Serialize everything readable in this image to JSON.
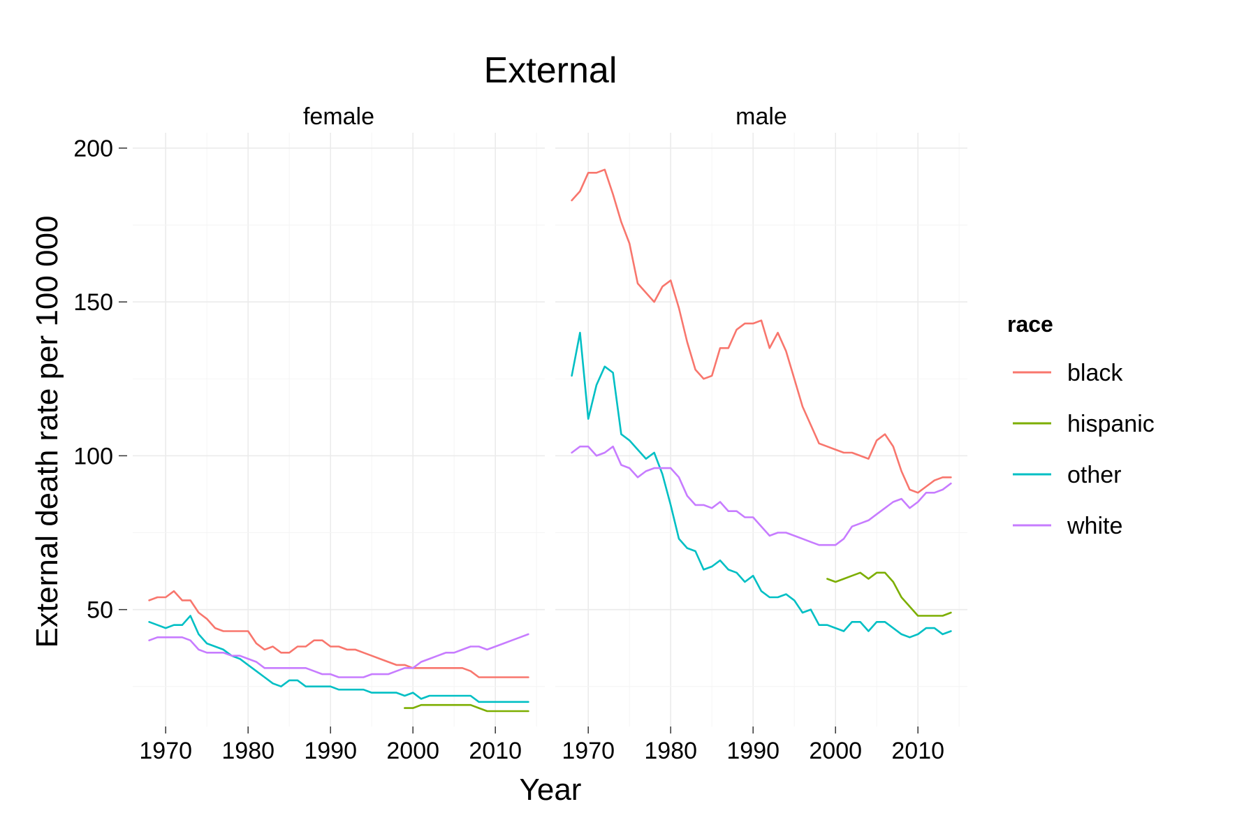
{
  "chart_data": {
    "type": "line",
    "title": "External",
    "xlabel": "Year",
    "ylabel": "External death rate per 100 000",
    "legend": {
      "title": "race",
      "placement": "right",
      "items": [
        {
          "label": "black",
          "color": "#F8766D"
        },
        {
          "label": "hispanic",
          "color": "#7CAE00"
        },
        {
          "label": "other",
          "color": "#00BFC4"
        },
        {
          "label": "white",
          "color": "#C77CFF"
        }
      ]
    },
    "xlim": [
      1966,
      2016
    ],
    "ylim": [
      12,
      205
    ],
    "x_ticks": [
      1970,
      1980,
      1990,
      2000,
      2010
    ],
    "x_tick_labels": [
      "1970",
      "1980",
      "1990",
      "2000",
      "2010"
    ],
    "y_ticks": [
      50,
      100,
      150,
      200
    ],
    "y_tick_labels": [
      "50",
      "100",
      "150",
      "200"
    ],
    "grid": true,
    "panels": [
      {
        "label": "female",
        "series": [
          {
            "name": "black",
            "x": [
              1968,
              1969,
              1970,
              1971,
              1972,
              1973,
              1974,
              1975,
              1976,
              1977,
              1978,
              1979,
              1980,
              1981,
              1982,
              1983,
              1984,
              1985,
              1986,
              1987,
              1988,
              1989,
              1990,
              1991,
              1992,
              1993,
              1994,
              1995,
              1996,
              1997,
              1998,
              1999,
              2000,
              2001,
              2002,
              2003,
              2004,
              2005,
              2006,
              2007,
              2008,
              2009,
              2010,
              2011,
              2012,
              2013,
              2014
            ],
            "y": [
              53,
              54,
              54,
              56,
              53,
              53,
              49,
              47,
              44,
              43,
              43,
              43,
              43,
              39,
              37,
              38,
              36,
              36,
              38,
              38,
              40,
              40,
              38,
              38,
              37,
              37,
              36,
              35,
              34,
              33,
              32,
              32,
              31,
              31,
              31,
              31,
              31,
              31,
              31,
              30,
              28,
              28,
              28,
              28,
              28,
              28,
              28
            ]
          },
          {
            "name": "hispanic",
            "x": [
              1999,
              2000,
              2001,
              2002,
              2003,
              2004,
              2005,
              2006,
              2007,
              2008,
              2009,
              2010,
              2011,
              2012,
              2013,
              2014
            ],
            "y": [
              18,
              18,
              19,
              19,
              19,
              19,
              19,
              19,
              19,
              18,
              17,
              17,
              17,
              17,
              17,
              17
            ]
          },
          {
            "name": "other",
            "x": [
              1968,
              1969,
              1970,
              1971,
              1972,
              1973,
              1974,
              1975,
              1976,
              1977,
              1978,
              1979,
              1980,
              1981,
              1982,
              1983,
              1984,
              1985,
              1986,
              1987,
              1988,
              1989,
              1990,
              1991,
              1992,
              1993,
              1994,
              1995,
              1996,
              1997,
              1998,
              1999,
              2000,
              2001,
              2002,
              2003,
              2004,
              2005,
              2006,
              2007,
              2008,
              2009,
              2010,
              2011,
              2012,
              2013,
              2014
            ],
            "y": [
              46,
              45,
              44,
              45,
              45,
              48,
              42,
              39,
              38,
              37,
              35,
              34,
              32,
              30,
              28,
              26,
              25,
              27,
              27,
              25,
              25,
              25,
              25,
              24,
              24,
              24,
              24,
              23,
              23,
              23,
              23,
              22,
              23,
              21,
              22,
              22,
              22,
              22,
              22,
              22,
              20,
              20,
              20,
              20,
              20,
              20,
              20
            ]
          },
          {
            "name": "white",
            "x": [
              1968,
              1969,
              1970,
              1971,
              1972,
              1973,
              1974,
              1975,
              1976,
              1977,
              1978,
              1979,
              1980,
              1981,
              1982,
              1983,
              1984,
              1985,
              1986,
              1987,
              1988,
              1989,
              1990,
              1991,
              1992,
              1993,
              1994,
              1995,
              1996,
              1997,
              1998,
              1999,
              2000,
              2001,
              2002,
              2003,
              2004,
              2005,
              2006,
              2007,
              2008,
              2009,
              2010,
              2011,
              2012,
              2013,
              2014
            ],
            "y": [
              40,
              41,
              41,
              41,
              41,
              40,
              37,
              36,
              36,
              36,
              35,
              35,
              34,
              33,
              31,
              31,
              31,
              31,
              31,
              31,
              30,
              29,
              29,
              28,
              28,
              28,
              28,
              29,
              29,
              29,
              30,
              31,
              31,
              33,
              34,
              35,
              36,
              36,
              37,
              38,
              38,
              37,
              38,
              39,
              40,
              41,
              42
            ]
          }
        ]
      },
      {
        "label": "male",
        "series": [
          {
            "name": "black",
            "x": [
              1968,
              1969,
              1970,
              1971,
              1972,
              1973,
              1974,
              1975,
              1976,
              1977,
              1978,
              1979,
              1980,
              1981,
              1982,
              1983,
              1984,
              1985,
              1986,
              1987,
              1988,
              1989,
              1990,
              1991,
              1992,
              1993,
              1994,
              1995,
              1996,
              1997,
              1998,
              1999,
              2000,
              2001,
              2002,
              2003,
              2004,
              2005,
              2006,
              2007,
              2008,
              2009,
              2010,
              2011,
              2012,
              2013,
              2014
            ],
            "y": [
              183,
              186,
              192,
              192,
              193,
              185,
              176,
              169,
              156,
              153,
              150,
              155,
              157,
              148,
              137,
              128,
              125,
              126,
              135,
              135,
              141,
              143,
              143,
              144,
              135,
              140,
              134,
              125,
              116,
              110,
              104,
              103,
              102,
              101,
              101,
              100,
              99,
              105,
              107,
              103,
              95,
              89,
              88,
              90,
              92,
              93,
              93
            ]
          },
          {
            "name": "hispanic",
            "x": [
              1999,
              2000,
              2001,
              2002,
              2003,
              2004,
              2005,
              2006,
              2007,
              2008,
              2009,
              2010,
              2011,
              2012,
              2013,
              2014
            ],
            "y": [
              60,
              59,
              60,
              61,
              62,
              60,
              62,
              62,
              59,
              54,
              51,
              48,
              48,
              48,
              48,
              49
            ]
          },
          {
            "name": "other",
            "x": [
              1968,
              1969,
              1970,
              1971,
              1972,
              1973,
              1974,
              1975,
              1976,
              1977,
              1978,
              1979,
              1980,
              1981,
              1982,
              1983,
              1984,
              1985,
              1986,
              1987,
              1988,
              1989,
              1990,
              1991,
              1992,
              1993,
              1994,
              1995,
              1996,
              1997,
              1998,
              1999,
              2000,
              2001,
              2002,
              2003,
              2004,
              2005,
              2006,
              2007,
              2008,
              2009,
              2010,
              2011,
              2012,
              2013,
              2014
            ],
            "y": [
              126,
              140,
              112,
              123,
              129,
              127,
              107,
              105,
              102,
              99,
              101,
              94,
              84,
              73,
              70,
              69,
              63,
              64,
              66,
              63,
              62,
              59,
              61,
              56,
              54,
              54,
              55,
              53,
              49,
              50,
              45,
              45,
              44,
              43,
              46,
              46,
              43,
              46,
              46,
              44,
              42,
              41,
              42,
              44,
              44,
              42,
              43
            ]
          },
          {
            "name": "white",
            "x": [
              1968,
              1969,
              1970,
              1971,
              1972,
              1973,
              1974,
              1975,
              1976,
              1977,
              1978,
              1979,
              1980,
              1981,
              1982,
              1983,
              1984,
              1985,
              1986,
              1987,
              1988,
              1989,
              1990,
              1991,
              1992,
              1993,
              1994,
              1995,
              1996,
              1997,
              1998,
              1999,
              2000,
              2001,
              2002,
              2003,
              2004,
              2005,
              2006,
              2007,
              2008,
              2009,
              2010,
              2011,
              2012,
              2013,
              2014
            ],
            "y": [
              101,
              103,
              103,
              100,
              101,
              103,
              97,
              96,
              93,
              95,
              96,
              96,
              96,
              93,
              87,
              84,
              84,
              83,
              85,
              82,
              82,
              80,
              80,
              77,
              74,
              75,
              75,
              74,
              73,
              72,
              71,
              71,
              71,
              73,
              77,
              78,
              79,
              81,
              83,
              85,
              86,
              83,
              85,
              88,
              88,
              89,
              91
            ]
          }
        ]
      }
    ]
  }
}
